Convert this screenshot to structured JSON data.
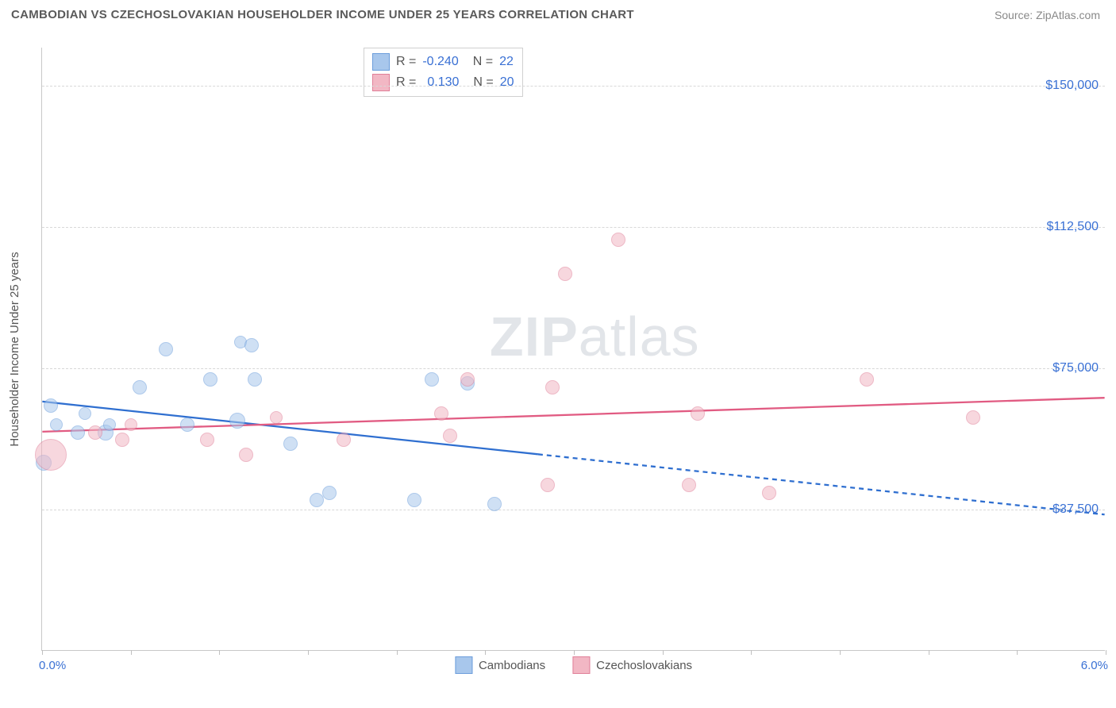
{
  "header": {
    "title": "CAMBODIAN VS CZECHOSLOVAKIAN HOUSEHOLDER INCOME UNDER 25 YEARS CORRELATION CHART",
    "source": "Source: ZipAtlas.com"
  },
  "chart": {
    "type": "scatter",
    "yaxis_label": "Householder Income Under 25 years",
    "xlim": [
      0.0,
      6.0
    ],
    "ylim": [
      0,
      160000
    ],
    "x_tick_count": 12,
    "x_left_label": "0.0%",
    "x_right_label": "6.0%",
    "y_ticks": [
      {
        "v": 37500,
        "label": "$37,500"
      },
      {
        "v": 75000,
        "label": "$75,000"
      },
      {
        "v": 112500,
        "label": "$112,500"
      },
      {
        "v": 150000,
        "label": "$150,000"
      }
    ],
    "background_color": "#ffffff",
    "grid_color": "#d8d8d8",
    "axis_text_color": "#3970d4",
    "series": [
      {
        "name": "Cambodians",
        "fill": "#a8c7ec",
        "stroke": "#6b9ddb",
        "fill_opacity": 0.55,
        "stroke_width": 1.3,
        "R": "-0.240",
        "N": "22",
        "trend": {
          "color": "#2f6fd0",
          "width": 2.3,
          "solid_from_x": 0.0,
          "solid_to_x": 2.8,
          "y_at_x0": 66000,
          "y_at_x6": 36000
        },
        "points": [
          {
            "x": 0.01,
            "y": 50000,
            "r": 10
          },
          {
            "x": 0.05,
            "y": 65000,
            "r": 9
          },
          {
            "x": 0.08,
            "y": 60000,
            "r": 8
          },
          {
            "x": 0.2,
            "y": 58000,
            "r": 9
          },
          {
            "x": 0.24,
            "y": 63000,
            "r": 8
          },
          {
            "x": 0.36,
            "y": 58000,
            "r": 10
          },
          {
            "x": 0.38,
            "y": 60000,
            "r": 8
          },
          {
            "x": 0.55,
            "y": 70000,
            "r": 9
          },
          {
            "x": 0.7,
            "y": 80000,
            "r": 9
          },
          {
            "x": 0.82,
            "y": 60000,
            "r": 9
          },
          {
            "x": 0.95,
            "y": 72000,
            "r": 9
          },
          {
            "x": 1.1,
            "y": 61000,
            "r": 10
          },
          {
            "x": 1.12,
            "y": 82000,
            "r": 8
          },
          {
            "x": 1.18,
            "y": 81000,
            "r": 9
          },
          {
            "x": 1.2,
            "y": 72000,
            "r": 9
          },
          {
            "x": 1.4,
            "y": 55000,
            "r": 9
          },
          {
            "x": 1.55,
            "y": 40000,
            "r": 9
          },
          {
            "x": 1.62,
            "y": 42000,
            "r": 9
          },
          {
            "x": 2.1,
            "y": 40000,
            "r": 9
          },
          {
            "x": 2.2,
            "y": 72000,
            "r": 9
          },
          {
            "x": 2.4,
            "y": 71000,
            "r": 9
          },
          {
            "x": 2.55,
            "y": 39000,
            "r": 9
          }
        ]
      },
      {
        "name": "Czechoslovakians",
        "fill": "#f2b7c4",
        "stroke": "#e07f98",
        "fill_opacity": 0.55,
        "stroke_width": 1.3,
        "R": "0.130",
        "N": "20",
        "trend": {
          "color": "#e15b82",
          "width": 2.3,
          "y_at_x0": 58000,
          "y_at_x6": 67000
        },
        "points": [
          {
            "x": 0.05,
            "y": 52000,
            "r": 20
          },
          {
            "x": 0.3,
            "y": 58000,
            "r": 9
          },
          {
            "x": 0.45,
            "y": 56000,
            "r": 9
          },
          {
            "x": 0.5,
            "y": 60000,
            "r": 8
          },
          {
            "x": 0.93,
            "y": 56000,
            "r": 9
          },
          {
            "x": 1.15,
            "y": 52000,
            "r": 9
          },
          {
            "x": 1.32,
            "y": 62000,
            "r": 8
          },
          {
            "x": 1.7,
            "y": 56000,
            "r": 9
          },
          {
            "x": 2.25,
            "y": 63000,
            "r": 9
          },
          {
            "x": 2.3,
            "y": 57000,
            "r": 9
          },
          {
            "x": 2.4,
            "y": 72000,
            "r": 9
          },
          {
            "x": 2.85,
            "y": 44000,
            "r": 9
          },
          {
            "x": 2.88,
            "y": 70000,
            "r": 9
          },
          {
            "x": 2.95,
            "y": 100000,
            "r": 9
          },
          {
            "x": 3.25,
            "y": 109000,
            "r": 9
          },
          {
            "x": 3.65,
            "y": 44000,
            "r": 9
          },
          {
            "x": 3.7,
            "y": 63000,
            "r": 9
          },
          {
            "x": 4.1,
            "y": 42000,
            "r": 9
          },
          {
            "x": 4.65,
            "y": 72000,
            "r": 9
          },
          {
            "x": 5.25,
            "y": 62000,
            "r": 9
          }
        ]
      }
    ],
    "watermark": "ZIPatlas",
    "bottom_legend": [
      {
        "label": "Cambodians",
        "fill": "#a8c7ec",
        "stroke": "#6b9ddb"
      },
      {
        "label": "Czechoslovakians",
        "fill": "#f2b7c4",
        "stroke": "#e07f98"
      }
    ]
  }
}
